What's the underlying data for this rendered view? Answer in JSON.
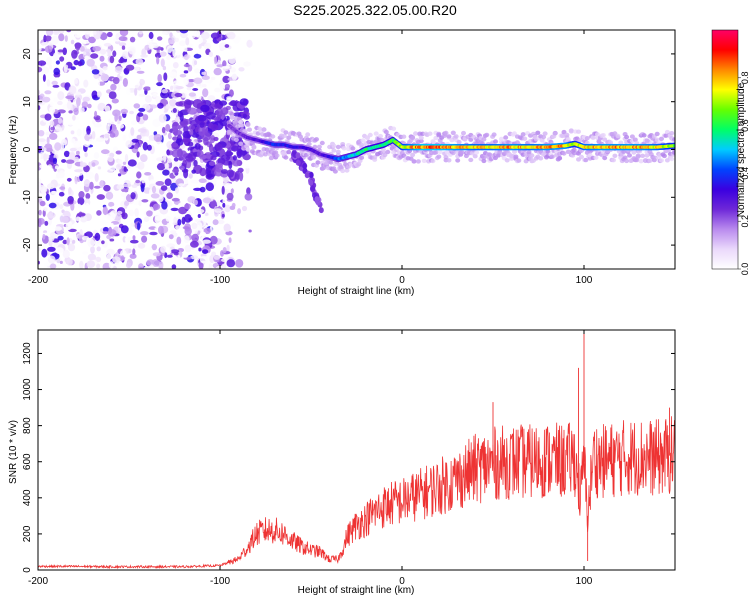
{
  "title": "S225.2025.322.05.00.R20",
  "chart_data": [
    {
      "type": "heatmap",
      "title": "S225.2025.322.05.00.R20",
      "xlabel": "Height of straight line (km)",
      "ylabel": "Frequency (Hz)",
      "xlim": [
        -200,
        150
      ],
      "ylim": [
        -25,
        25
      ],
      "xticks": [
        -200,
        -100,
        0,
        100
      ],
      "yticks": [
        -20,
        -10,
        0,
        10,
        20
      ],
      "colorbar": {
        "label": "Normalized spectral amplitude",
        "range": [
          0.0,
          1.0
        ],
        "ticks": [
          0.0,
          0.2,
          0.4,
          0.6,
          0.8
        ],
        "tick_labels": [
          "0.0",
          "0.2",
          "0.4",
          "0.6",
          "0.8"
        ],
        "colormap": [
          "#ffffff",
          "#ead8fb",
          "#b98aee",
          "#6e28d8",
          "#3a00e0",
          "#0044ff",
          "#00ccff",
          "#00ff66",
          "#66ff00",
          "#ffff00",
          "#ff8800",
          "#ff0000",
          "#ff0066"
        ]
      },
      "ridge": {
        "x": [
          -95,
          -90,
          -85,
          -80,
          -75,
          -70,
          -65,
          -60,
          -55,
          -50,
          -45,
          -40,
          -35,
          -30,
          -25,
          -20,
          -15,
          -10,
          -5,
          0,
          10,
          20,
          30,
          40,
          50,
          60,
          70,
          80,
          90,
          95,
          100,
          110,
          120,
          130,
          140,
          150
        ],
        "y": [
          5,
          3.5,
          2.5,
          2,
          1.5,
          1,
          1,
          0.5,
          0.5,
          0,
          -1,
          -1.5,
          -2,
          -1.5,
          -1,
          0,
          0.5,
          1,
          2,
          0.5,
          0.5,
          0.5,
          0.5,
          0.5,
          0.5,
          0.5,
          0.5,
          0.5,
          0.8,
          1.2,
          0.5,
          0.5,
          0.5,
          0.5,
          0.5,
          0.8
        ],
        "amplitude": [
          0.25,
          0.25,
          0.28,
          0.3,
          0.35,
          0.4,
          0.4,
          0.35,
          0.35,
          0.3,
          0.3,
          0.35,
          0.45,
          0.5,
          0.55,
          0.6,
          0.6,
          0.6,
          0.65,
          0.75,
          0.9,
          0.9,
          0.85,
          0.8,
          0.8,
          0.85,
          0.8,
          0.85,
          0.85,
          0.7,
          0.8,
          0.85,
          0.85,
          0.85,
          0.8,
          0.7
        ]
      },
      "branch": {
        "x": [
          -60,
          -55,
          -50,
          -48,
          -46,
          -44
        ],
        "y": [
          -1,
          -3,
          -6,
          -9,
          -11,
          -13
        ]
      }
    },
    {
      "type": "line",
      "xlabel": "Height of straight line (km)",
      "ylabel": "SNR (10 * v/v)",
      "xlim": [
        -200,
        150
      ],
      "ylim": [
        0,
        1330
      ],
      "xticks": [
        -200,
        -100,
        0,
        100
      ],
      "yticks": [
        0,
        200,
        400,
        600,
        800,
        1000,
        1200
      ],
      "color": "#ee3333",
      "series": [
        {
          "x": [
            -200,
            -180,
            -160,
            -140,
            -120,
            -100,
            -90,
            -85,
            -80,
            -75,
            -70,
            -65,
            -60,
            -55,
            -50,
            -45,
            -40,
            -35,
            -32,
            -30,
            -25,
            -20,
            -15,
            -10,
            -5,
            0,
            10,
            20,
            30,
            40,
            50,
            60,
            70,
            80,
            90,
            95,
            98,
            100,
            102,
            105,
            110,
            120,
            130,
            140,
            150
          ],
          "y": [
            20,
            20,
            18,
            18,
            18,
            25,
            60,
            120,
            200,
            220,
            220,
            200,
            160,
            130,
            110,
            100,
            60,
            60,
            130,
            190,
            250,
            280,
            320,
            350,
            370,
            380,
            420,
            460,
            500,
            560,
            590,
            600,
            600,
            610,
            600,
            620,
            400,
            600,
            300,
            620,
            600,
            620,
            630,
            620,
            640
          ]
        }
      ],
      "spikes": [
        {
          "x": 100,
          "y": 1330
        },
        {
          "x": 97,
          "y": 1120
        },
        {
          "x": 102,
          "y": 50
        },
        {
          "x": 50,
          "y": 930
        },
        {
          "x": 147,
          "y": 900
        }
      ]
    }
  ]
}
